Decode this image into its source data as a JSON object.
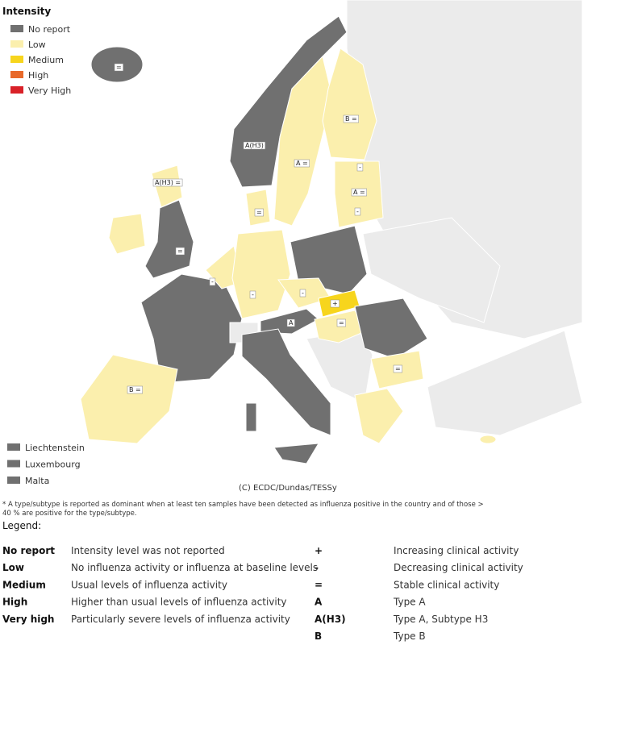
{
  "legend": {
    "title": "Intensity",
    "items": [
      {
        "label": "No report",
        "color": "#707070"
      },
      {
        "label": "Low",
        "color": "#fbefad"
      },
      {
        "label": "Medium",
        "color": "#f7d51d"
      },
      {
        "label": "High",
        "color": "#e8692a"
      },
      {
        "label": "Very High",
        "color": "#d92128"
      }
    ]
  },
  "small_countries": [
    "Liechtenstein",
    "Luxembourg",
    "Malta"
  ],
  "map_labels": [
    "A(H3)",
    "A(H3) =",
    "A =",
    "B =",
    "A =",
    "A",
    "B =",
    "+",
    "=",
    "-",
    "-",
    "=",
    "=",
    "-",
    "-",
    "-",
    "=",
    "="
  ],
  "credit": "(C) ECDC/Dundas/TESSy",
  "footnote": "* A type/subtype is reported as dominant when at least ten samples have been detected as influenza positive in the country and of those > 40 %  are positive for the type/subtype.",
  "legend_heading": "Legend:",
  "intensity_definitions": [
    [
      "No report",
      "Intensity level was not reported"
    ],
    [
      "Low",
      "No influenza activity or influenza at baseline levels"
    ],
    [
      "Medium",
      "Usual levels of influenza activity"
    ],
    [
      "High",
      "Higher than usual levels of influenza activity"
    ],
    [
      "Very high",
      "Particularly severe levels of influenza activity"
    ]
  ],
  "symbol_definitions": [
    [
      "+",
      "Increasing clinical activity"
    ],
    [
      "-",
      "Decreasing clinical activity"
    ],
    [
      "=",
      "Stable clinical activity"
    ],
    [
      "A",
      "Type A"
    ],
    [
      "A(H3)",
      "Type A, Subtype H3"
    ],
    [
      "B",
      "Type B"
    ]
  ]
}
